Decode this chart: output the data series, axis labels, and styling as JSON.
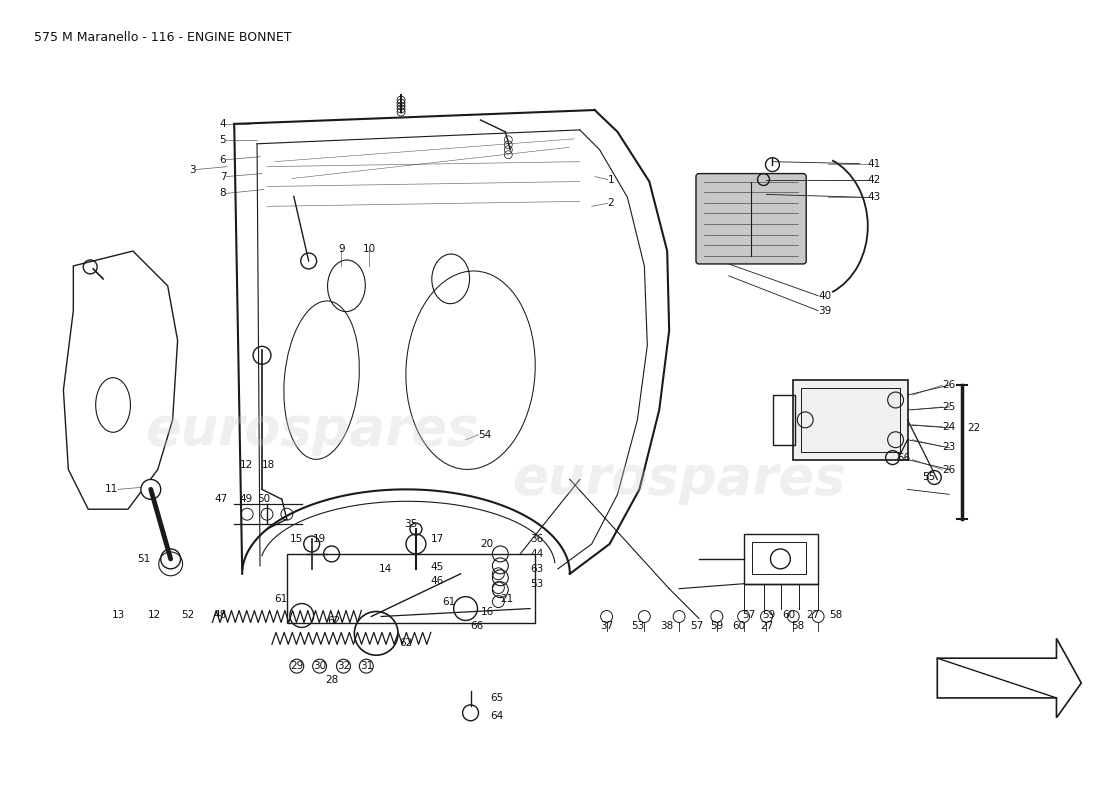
{
  "title": "575 M Maranello - 116 - ENGINE BONNET",
  "title_fontsize": 9,
  "bg_color": "#ffffff",
  "line_color": "#1a1a1a",
  "figsize": [
    11,
    8
  ],
  "dpi": 100
}
